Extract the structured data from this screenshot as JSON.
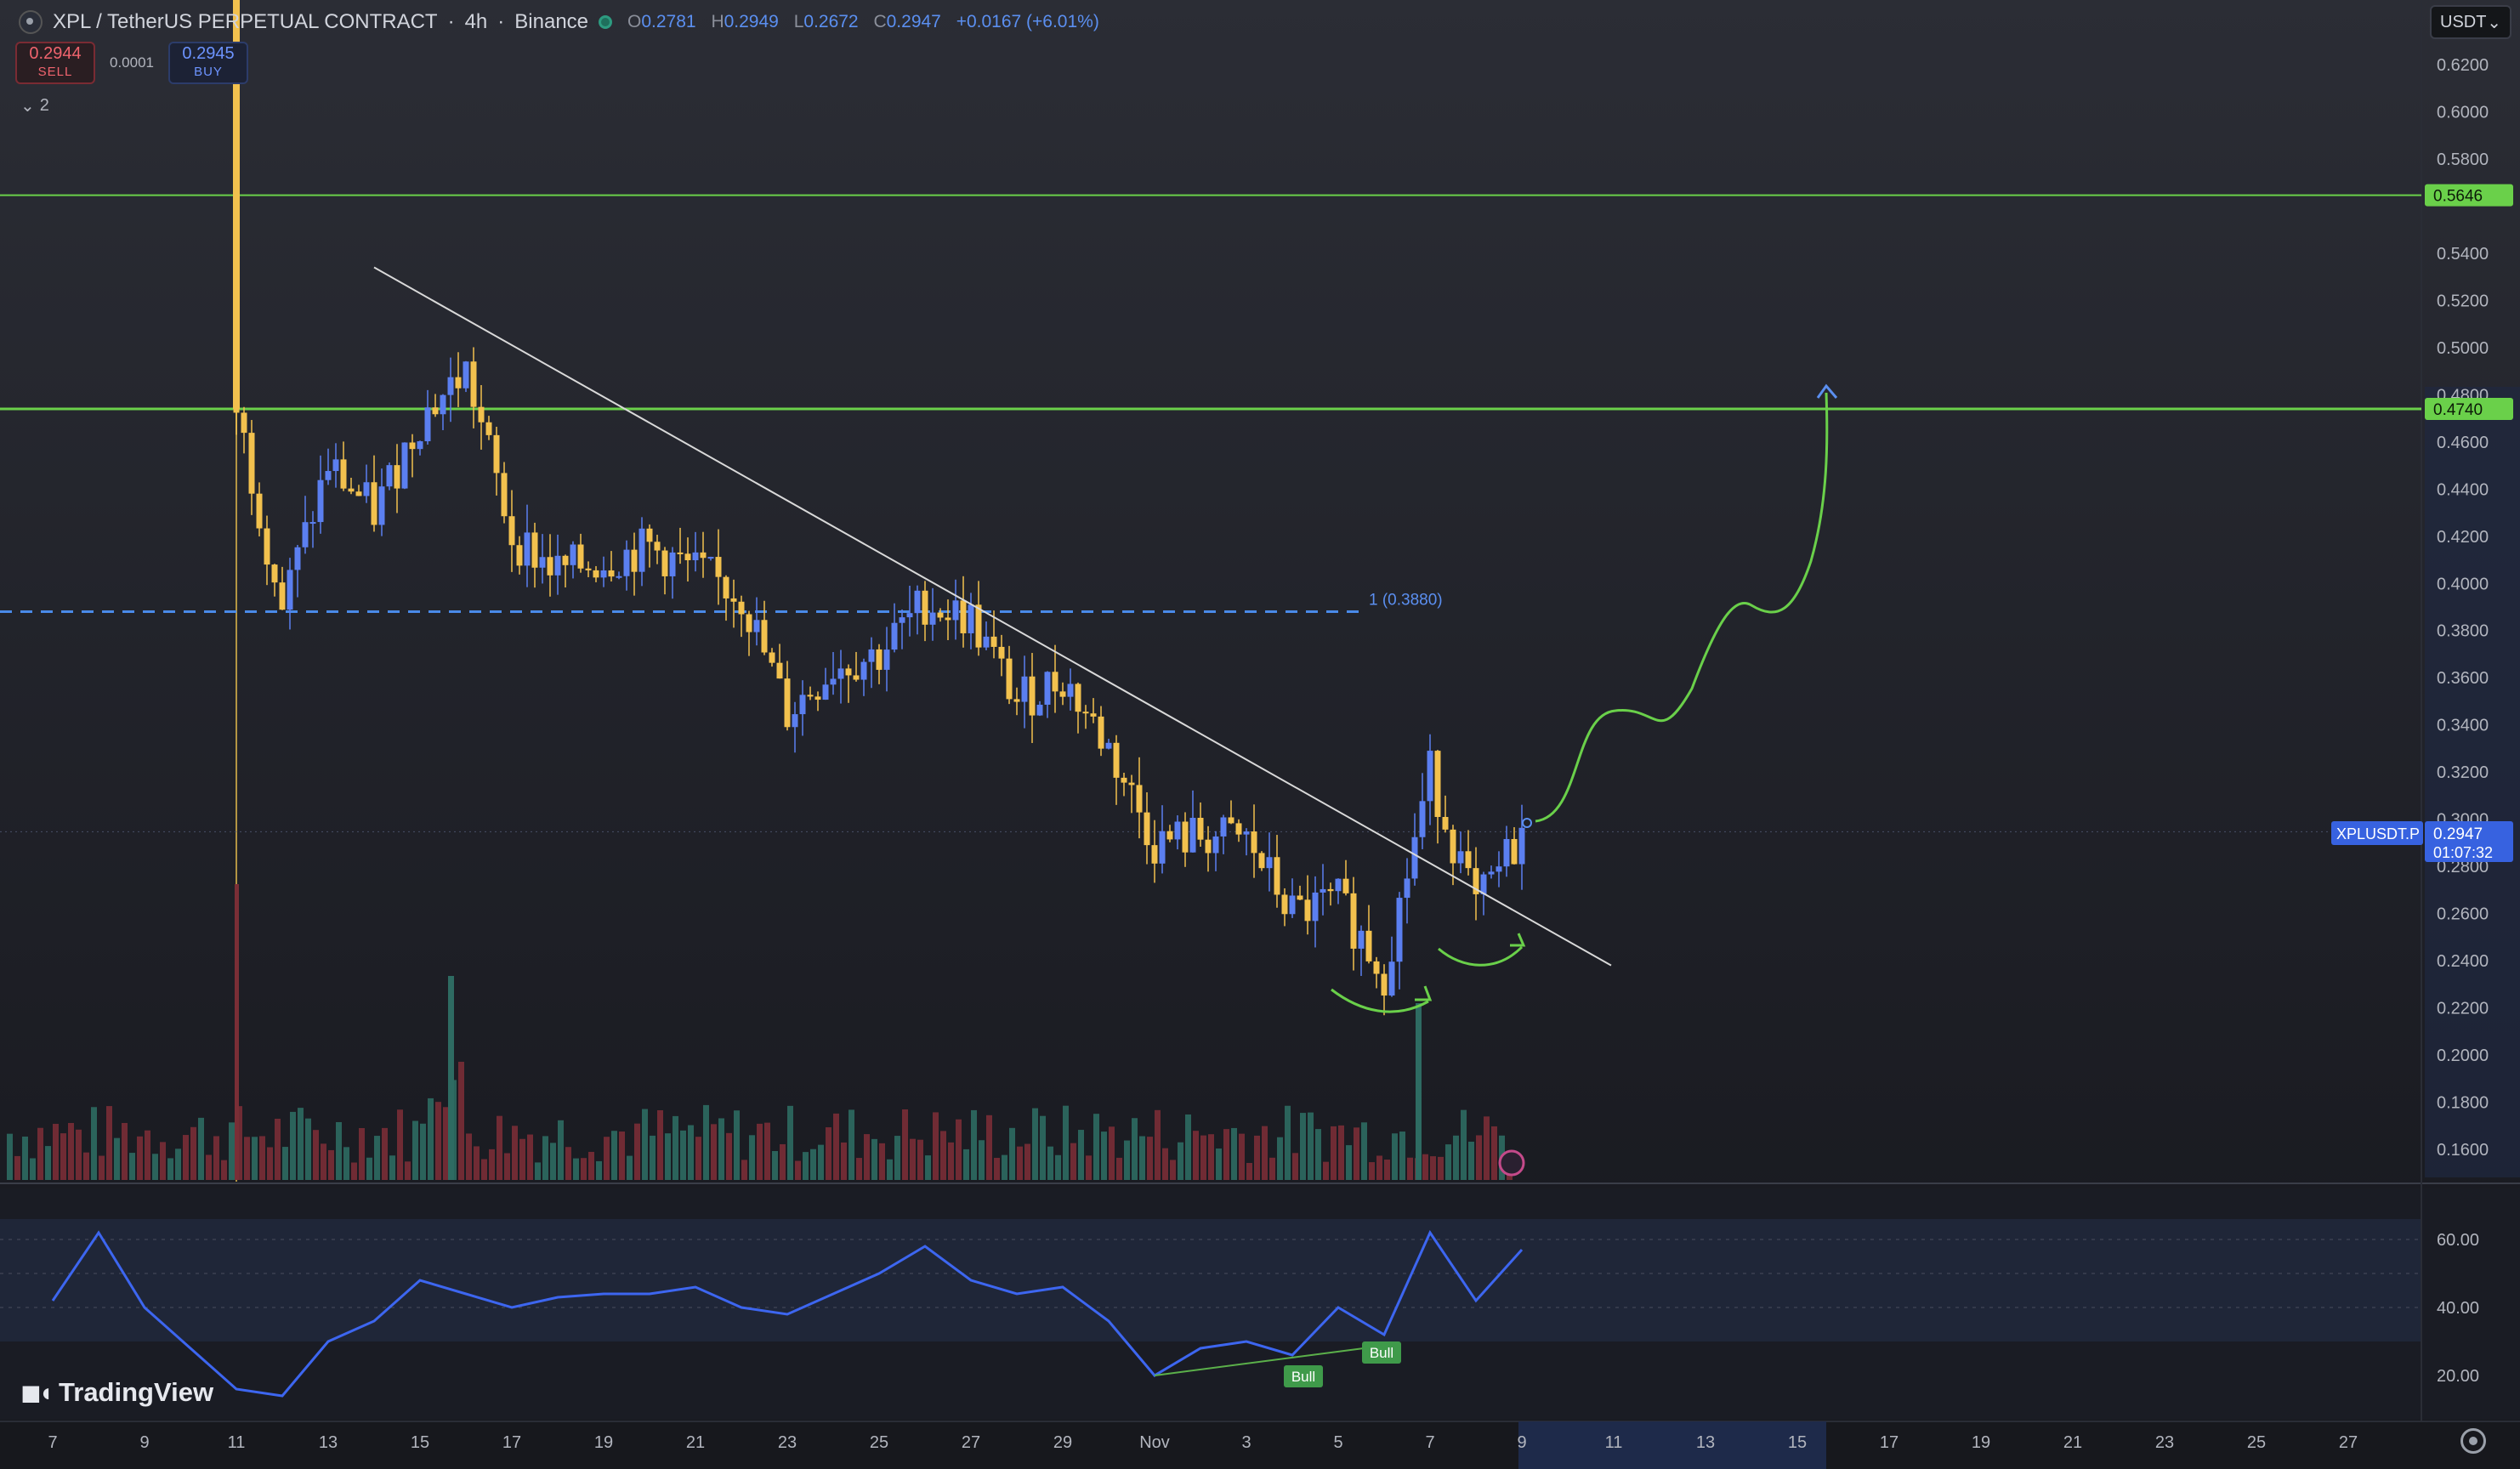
{
  "header": {
    "symbol": "XPL / TetherUS PERPETUAL CONTRACT",
    "sep": "·",
    "interval": "4h",
    "exchange": "Binance",
    "ohlc": {
      "o_label": "O",
      "o": "0.2781",
      "h_label": "H",
      "h": "0.2949",
      "l_label": "L",
      "l": "0.2672",
      "c_label": "C",
      "c": "0.2947",
      "change": "+0.0167 (+6.01%)"
    }
  },
  "trade": {
    "sell_price": "0.2944",
    "sell_label": "SELL",
    "spread": "0.0001",
    "buy_price": "0.2945",
    "buy_label": "BUY"
  },
  "indicators_collapsed_count": "2",
  "currency": "USDT",
  "branding": "TradingView",
  "price_axis": {
    "ticks": [
      "0.6200",
      "0.6000",
      "0.5800",
      "0.5400",
      "0.5200",
      "0.5000",
      "0.4800",
      "0.4600",
      "0.4400",
      "0.4200",
      "0.4000",
      "0.3800",
      "0.3600",
      "0.3400",
      "0.3200",
      "0.3000",
      "0.2800",
      "0.2600",
      "0.2400",
      "0.2200",
      "0.2000",
      "0.1800",
      "0.1600"
    ],
    "tick_values": [
      0.62,
      0.6,
      0.58,
      0.54,
      0.52,
      0.5,
      0.48,
      0.46,
      0.44,
      0.42,
      0.4,
      0.38,
      0.36,
      0.34,
      0.32,
      0.3,
      0.28,
      0.26,
      0.24,
      0.22,
      0.2,
      0.18,
      0.16
    ]
  },
  "badges": {
    "level1": "0.5646",
    "level2": "0.4740",
    "symbol_tag": "XPLUSDT.P",
    "last": "0.2947",
    "countdown": "01:07:32"
  },
  "colors": {
    "bull": "#5b7ff0",
    "bear": "#f2c14e",
    "level": "#6ad04a",
    "trend": "#d9d9d9",
    "dashed": "#4a8ae8",
    "rsi": "#3d66f0",
    "draw": "#6ad04a"
  },
  "fib_label": "1 (0.3880)",
  "rsi_axis": {
    "ticks": [
      "60.00",
      "40.00",
      "20.00"
    ],
    "values": [
      60,
      40,
      20
    ],
    "range": [
      13,
      66
    ]
  },
  "rsi_labels": [
    "Bull",
    "Bull"
  ],
  "time_axis": [
    "7",
    "9",
    "11",
    "13",
    "15",
    "17",
    "19",
    "21",
    "23",
    "25",
    "27",
    "29",
    "Nov",
    "3",
    "5",
    "7",
    "9",
    "11",
    "13",
    "15",
    "17",
    "19",
    "21",
    "23",
    "25",
    "27"
  ],
  "chart_data": {
    "type": "candlestick",
    "title": "XPL / TetherUS PERPETUAL CONTRACT · 4h · Binance",
    "ylim": [
      0.15,
      0.63
    ],
    "horizontal_levels": [
      0.5646,
      0.474
    ],
    "fib_level": 0.388,
    "last_price": 0.2947,
    "trendline": {
      "from": {
        "x": "Oct 14",
        "y": 0.534
      },
      "to": {
        "x": "Nov 8",
        "y": 0.238
      }
    },
    "price_path": [
      {
        "x": "Oct 11",
        "y": 0.474
      },
      {
        "x": "Oct 12",
        "y": 0.39
      },
      {
        "x": "Oct 13",
        "y": 0.45
      },
      {
        "x": "Oct 14",
        "y": 0.43
      },
      {
        "x": "Oct 15",
        "y": 0.47
      },
      {
        "x": "Oct 16",
        "y": 0.49
      },
      {
        "x": "Oct 17",
        "y": 0.42
      },
      {
        "x": "Oct 18",
        "y": 0.405
      },
      {
        "x": "Oct 19",
        "y": 0.41
      },
      {
        "x": "Oct 20",
        "y": 0.415
      },
      {
        "x": "Oct 21",
        "y": 0.405
      },
      {
        "x": "Oct 22",
        "y": 0.395
      },
      {
        "x": "Oct 23",
        "y": 0.345
      },
      {
        "x": "Oct 24",
        "y": 0.365
      },
      {
        "x": "Oct 25",
        "y": 0.37
      },
      {
        "x": "Oct 26",
        "y": 0.392
      },
      {
        "x": "Oct 27",
        "y": 0.385
      },
      {
        "x": "Oct 28",
        "y": 0.35
      },
      {
        "x": "Oct 29",
        "y": 0.36
      },
      {
        "x": "Oct 30",
        "y": 0.33
      },
      {
        "x": "Oct 31",
        "y": 0.29
      },
      {
        "x": "Nov 1",
        "y": 0.293
      },
      {
        "x": "Nov 2",
        "y": 0.291
      },
      {
        "x": "Nov 3",
        "y": 0.26
      },
      {
        "x": "Nov 4",
        "y": 0.265
      },
      {
        "x": "Nov 5",
        "y": 0.235
      },
      {
        "x": "Nov 6",
        "y": 0.32
      },
      {
        "x": "Nov 7",
        "y": 0.262
      },
      {
        "x": "Nov 8",
        "y": 0.2947
      }
    ],
    "rsi_path": [
      {
        "x": "Oct 7",
        "y": 42
      },
      {
        "x": "Oct 8",
        "y": 62
      },
      {
        "x": "Oct 9",
        "y": 40
      },
      {
        "x": "Oct 10",
        "y": 28
      },
      {
        "x": "Oct 11",
        "y": 16
      },
      {
        "x": "Oct 12",
        "y": 14
      },
      {
        "x": "Oct 13",
        "y": 30
      },
      {
        "x": "Oct 14",
        "y": 36
      },
      {
        "x": "Oct 15",
        "y": 48
      },
      {
        "x": "Oct 16",
        "y": 44
      },
      {
        "x": "Oct 17",
        "y": 40
      },
      {
        "x": "Oct 18",
        "y": 43
      },
      {
        "x": "Oct 19",
        "y": 44
      },
      {
        "x": "Oct 20",
        "y": 44
      },
      {
        "x": "Oct 21",
        "y": 46
      },
      {
        "x": "Oct 22",
        "y": 40
      },
      {
        "x": "Oct 23",
        "y": 38
      },
      {
        "x": "Oct 24",
        "y": 44
      },
      {
        "x": "Oct 25",
        "y": 50
      },
      {
        "x": "Oct 26",
        "y": 58
      },
      {
        "x": "Oct 27",
        "y": 48
      },
      {
        "x": "Oct 28",
        "y": 44
      },
      {
        "x": "Oct 29",
        "y": 46
      },
      {
        "x": "Oct 30",
        "y": 36
      },
      {
        "x": "Oct 31",
        "y": 20
      },
      {
        "x": "Nov 1",
        "y": 28
      },
      {
        "x": "Nov 2",
        "y": 30
      },
      {
        "x": "Nov 3",
        "y": 26
      },
      {
        "x": "Nov 4",
        "y": 40
      },
      {
        "x": "Nov 5",
        "y": 32
      },
      {
        "x": "Nov 6",
        "y": 62
      },
      {
        "x": "Nov 7",
        "y": 42
      },
      {
        "x": "Nov 8",
        "y": 57
      }
    ]
  }
}
